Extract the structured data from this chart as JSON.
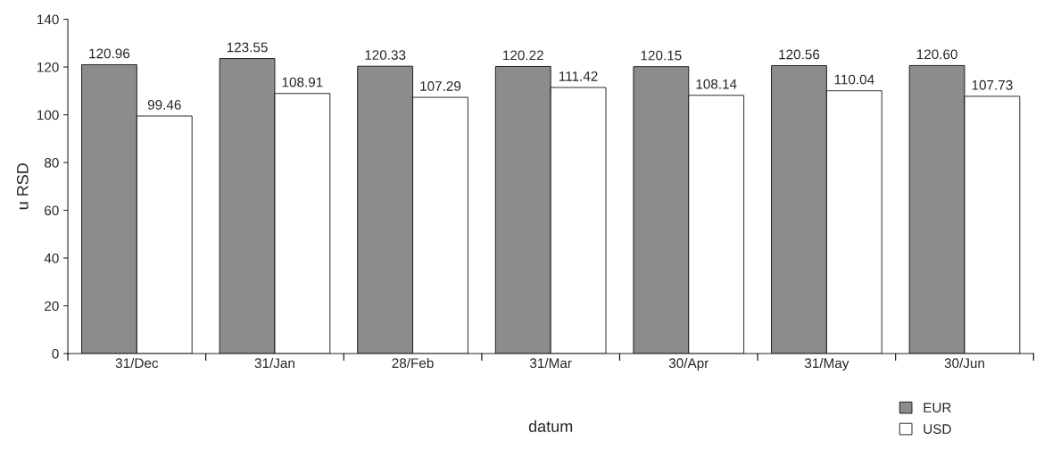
{
  "chart_data": {
    "type": "bar",
    "xlabel": "datum",
    "ylabel": "u RSD",
    "categories": [
      "31/Dec",
      "31/Jan",
      "28/Feb",
      "31/Mar",
      "30/Apr",
      "31/May",
      "30/Jun"
    ],
    "series": [
      {
        "name": "EUR",
        "color": "#8c8c8c",
        "values": [
          120.96,
          123.55,
          120.33,
          120.22,
          120.15,
          120.56,
          120.6
        ],
        "value_labels": [
          "120.96",
          "123.55",
          "120.33",
          "120.22",
          "120.15",
          "120.56",
          "120.60"
        ]
      },
      {
        "name": "USD",
        "color": "#ffffff",
        "values": [
          99.46,
          108.91,
          107.29,
          111.42,
          108.14,
          110.04,
          107.73
        ],
        "value_labels": [
          "99.46",
          "108.91",
          "107.29",
          "111.42",
          "108.14",
          "110.04",
          "107.73"
        ]
      }
    ],
    "ylim": [
      0,
      140
    ],
    "yticks": [
      0,
      20,
      40,
      60,
      80,
      100,
      120,
      140
    ],
    "grid": false,
    "legend": "bottom right"
  }
}
